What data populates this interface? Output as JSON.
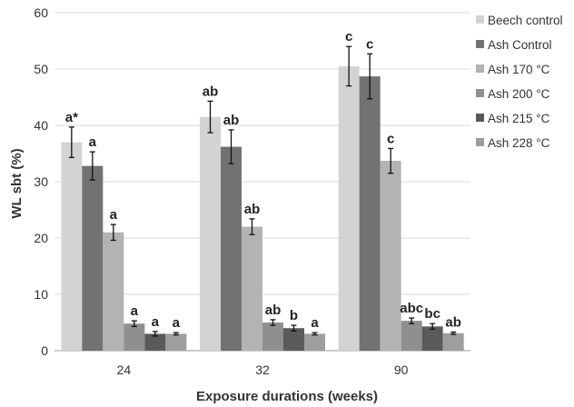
{
  "chart_data": {
    "type": "bar",
    "title": "",
    "xlabel": "Exposure durations  (weeks)",
    "ylabel": "WL sbt (%)",
    "ylim": [
      0,
      60
    ],
    "yticks": [
      0,
      10,
      20,
      30,
      40,
      50,
      60
    ],
    "grid": "horizontal",
    "legend_position": "right",
    "categories": [
      "24",
      "32",
      "90"
    ],
    "series": [
      {
        "name": "Beech control",
        "color": "#d3d3d3",
        "values": [
          37.0,
          41.5,
          50.5
        ],
        "errors": [
          2.7,
          2.8,
          3.5
        ],
        "labels": [
          "a*",
          "ab",
          "c"
        ]
      },
      {
        "name": "Ash Control",
        "color": "#727272",
        "values": [
          32.8,
          36.2,
          48.7
        ],
        "errors": [
          2.5,
          3.0,
          4.0
        ],
        "labels": [
          "a",
          "ab",
          "c"
        ]
      },
      {
        "name": "Ash 170 °C",
        "color": "#b3b3b3",
        "values": [
          21.0,
          22.0,
          33.7
        ],
        "errors": [
          1.4,
          1.4,
          2.2
        ],
        "labels": [
          "a",
          "ab",
          "c"
        ]
      },
      {
        "name": "Ash 200 °C",
        "color": "#8f8f8f",
        "values": [
          4.8,
          5.0,
          5.3
        ],
        "errors": [
          0.5,
          0.5,
          0.5
        ],
        "labels": [
          "a",
          "ab",
          "abc"
        ]
      },
      {
        "name": "Ash 215 °C",
        "color": "#5a5a5a",
        "values": [
          3.0,
          4.0,
          4.3
        ],
        "errors": [
          0.4,
          0.5,
          0.5
        ],
        "labels": [
          "a",
          "b",
          "bc"
        ]
      },
      {
        "name": "Ash 228 °C",
        "color": "#9e9e9e",
        "values": [
          3.0,
          3.0,
          3.1
        ],
        "errors": [
          0.2,
          0.2,
          0.2
        ],
        "labels": [
          "a",
          "a",
          "ab"
        ]
      }
    ]
  }
}
